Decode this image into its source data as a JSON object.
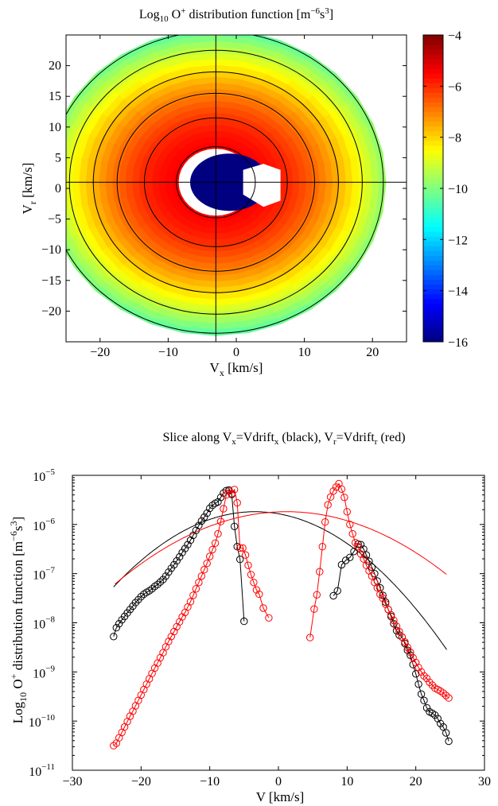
{
  "chart_data": [
    {
      "type": "heatmap",
      "title": {
        "pre": "Log",
        "sub": "10",
        "mid": " O",
        "sup1": "+",
        "post": " distribution function [m",
        "sup2": "−6",
        "post2": "s",
        "sup3": "3",
        "end": "]"
      },
      "xlabel": {
        "main": "V",
        "sub": "x",
        "rest": " [km/s]"
      },
      "ylabel": {
        "main": "V",
        "sub": "r",
        "rest": " [km/s]"
      },
      "xlim": [
        -25,
        25
      ],
      "ylim": [
        -25,
        25
      ],
      "xticks": [
        -20,
        -10,
        0,
        10,
        20
      ],
      "yticks": [
        -20,
        -15,
        -10,
        -5,
        0,
        5,
        10,
        15,
        20
      ],
      "xtick_labels": [
        "−20",
        "−10",
        "0",
        "10",
        "20"
      ],
      "ytick_labels": [
        "−20",
        "−15",
        "−10",
        "−5",
        "0",
        "5",
        "10",
        "15",
        "20"
      ],
      "colorbar": {
        "range": [
          -16,
          -4
        ],
        "ticks": [
          -4,
          -6,
          -8,
          -10,
          -12,
          -14,
          -16
        ],
        "tick_labels": [
          "−4",
          "−6",
          "−8",
          "−10",
          "−12",
          "−14",
          "−16"
        ],
        "colormap": "jet"
      },
      "field": {
        "center": [
          -3,
          1
        ],
        "peak_log10": -5.5,
        "edge_log10": -10.2,
        "outer_radius": 25,
        "masked_core_radius": 5.5,
        "masked_value_log10": -16,
        "angular_sectors": 32,
        "radial_rings": 20
      },
      "contours": {
        "circles_center": [
          -3,
          1
        ],
        "circle_radii": [
          5.8,
          10.5,
          14.5,
          18.0,
          21.5,
          24.6
        ],
        "axis_lines": {
          "vertical_x": -3,
          "horizontal_y": 1
        }
      }
    },
    {
      "type": "line",
      "title": {
        "pre": "Slice along V",
        "sub1": "x",
        "mid1": "=Vdrift",
        "sub2": "x",
        "mid2": " (black), V",
        "sub3": "r",
        "mid3": "=Vdrift",
        "sub4": "r",
        "end": " (red)"
      },
      "xlabel": "V [km/s]",
      "ylabel": {
        "pre": "Log",
        "sub": "10",
        "mid": " O",
        "sup1": "+",
        "post": " distribution function [m",
        "sup2": "−6",
        "post2": "s",
        "sup3": "3",
        "end": "]"
      },
      "xlim": [
        -30,
        30
      ],
      "ylim_log10": [
        -11,
        -5
      ],
      "yscale": "log",
      "xticks": [
        -30,
        -20,
        -10,
        0,
        10,
        20,
        30
      ],
      "xtick_labels": [
        "−30",
        "−20",
        "−10",
        "0",
        "10",
        "20",
        "30"
      ],
      "ytick_exponents": [
        -5,
        -6,
        -7,
        -8,
        -9,
        -10,
        -11
      ],
      "ytick_base": "10",
      "ytick_exponent_labels": [
        "−5",
        "−6",
        "−7",
        "−8",
        "−9",
        "−10",
        "−11"
      ],
      "series": [
        {
          "color": "#000000",
          "marker": "circle",
          "segments": [
            [
              [
                -24.0,
                -8.28
              ],
              [
                -23.6,
                -8.1
              ],
              [
                -23.2,
                -8.02
              ],
              [
                -22.8,
                -7.94
              ],
              [
                -22.4,
                -7.87
              ],
              [
                -22.0,
                -7.8
              ],
              [
                -21.6,
                -7.73
              ],
              [
                -21.2,
                -7.66
              ],
              [
                -20.8,
                -7.59
              ],
              [
                -20.4,
                -7.53
              ],
              [
                -20.0,
                -7.47
              ],
              [
                -19.6,
                -7.42
              ],
              [
                -19.2,
                -7.38
              ],
              [
                -18.8,
                -7.35
              ],
              [
                -18.4,
                -7.31
              ],
              [
                -18.0,
                -7.26
              ],
              [
                -17.6,
                -7.22
              ],
              [
                -17.2,
                -7.17
              ],
              [
                -16.8,
                -7.12
              ],
              [
                -16.4,
                -7.05
              ],
              [
                -16.0,
                -6.97
              ],
              [
                -15.6,
                -6.89
              ],
              [
                -15.2,
                -6.82
              ],
              [
                -14.8,
                -6.74
              ],
              [
                -14.4,
                -6.66
              ],
              [
                -14.0,
                -6.57
              ],
              [
                -13.6,
                -6.49
              ],
              [
                -13.2,
                -6.41
              ],
              [
                -12.8,
                -6.32
              ],
              [
                -12.4,
                -6.22
              ],
              [
                -12.0,
                -6.12
              ],
              [
                -11.6,
                -6.02
              ],
              [
                -11.2,
                -5.93
              ],
              [
                -10.8,
                -5.85
              ],
              [
                -10.4,
                -5.77
              ],
              [
                -10.0,
                -5.67
              ],
              [
                -9.6,
                -5.61
              ],
              [
                -9.2,
                -5.57
              ],
              [
                -8.8,
                -5.54
              ],
              [
                -8.4,
                -5.45
              ],
              [
                -8.0,
                -5.36
              ],
              [
                -7.6,
                -5.31
              ],
              [
                -7.2,
                -5.3
              ],
              [
                -6.8,
                -5.39
              ],
              [
                -6.4,
                -6.04
              ],
              [
                -6.0,
                -6.45
              ],
              [
                -5.6,
                -6.71
              ],
              [
                -5.0,
                -7.97
              ]
            ],
            [
              [
                8.0,
                -7.45
              ],
              [
                8.6,
                -7.35
              ],
              [
                9.2,
                -6.82
              ],
              [
                9.8,
                -6.73
              ],
              [
                10.4,
                -6.67
              ],
              [
                11.0,
                -6.55
              ],
              [
                11.6,
                -6.4
              ],
              [
                12.0,
                -6.41
              ],
              [
                12.4,
                -6.5
              ],
              [
                12.8,
                -6.62
              ],
              [
                13.2,
                -6.75
              ],
              [
                13.6,
                -6.87
              ],
              [
                14.0,
                -7.0
              ],
              [
                14.4,
                -7.15
              ],
              [
                14.8,
                -7.29
              ],
              [
                15.2,
                -7.44
              ],
              [
                15.6,
                -7.58
              ],
              [
                16.0,
                -7.73
              ],
              [
                16.4,
                -7.87
              ],
              [
                16.8,
                -8.02
              ],
              [
                17.2,
                -8.16
              ],
              [
                17.6,
                -8.25
              ],
              [
                18.0,
                -8.29
              ],
              [
                18.4,
                -8.42
              ],
              [
                18.8,
                -8.56
              ],
              [
                19.2,
                -8.66
              ],
              [
                19.6,
                -8.85
              ],
              [
                20.0,
                -9.04
              ],
              [
                20.4,
                -9.25
              ],
              [
                20.8,
                -9.45
              ],
              [
                21.2,
                -9.58
              ],
              [
                21.6,
                -9.73
              ],
              [
                22.0,
                -9.81
              ],
              [
                22.4,
                -9.84
              ],
              [
                22.8,
                -9.88
              ],
              [
                23.2,
                -9.95
              ],
              [
                23.6,
                -10.05
              ],
              [
                24.0,
                -10.12
              ],
              [
                24.4,
                -10.24
              ],
              [
                24.8,
                -10.41
              ]
            ]
          ],
          "fit": {
            "peak_x": -3.4,
            "peak_log10": -5.74,
            "sigma": 7.76,
            "x_range": [
              -24,
              24.6
            ]
          }
        },
        {
          "color": "#ff0000",
          "marker": "circle",
          "segments": [
            [
              [
                -24.0,
                -10.5
              ],
              [
                -23.6,
                -10.45
              ],
              [
                -23.2,
                -10.34
              ],
              [
                -22.8,
                -10.23
              ],
              [
                -22.4,
                -10.12
              ],
              [
                -22.0,
                -10.01
              ],
              [
                -21.6,
                -9.9
              ],
              [
                -21.2,
                -9.8
              ],
              [
                -20.8,
                -9.69
              ],
              [
                -20.4,
                -9.58
              ],
              [
                -20.0,
                -9.47
              ],
              [
                -19.6,
                -9.36
              ],
              [
                -19.2,
                -9.25
              ],
              [
                -18.8,
                -9.14
              ],
              [
                -18.4,
                -9.03
              ],
              [
                -18.0,
                -8.92
              ],
              [
                -17.6,
                -8.82
              ],
              [
                -17.2,
                -8.71
              ],
              [
                -16.8,
                -8.61
              ],
              [
                -16.4,
                -8.49
              ],
              [
                -16.0,
                -8.38
              ],
              [
                -15.6,
                -8.28
              ],
              [
                -15.2,
                -8.18
              ],
              [
                -14.8,
                -8.08
              ],
              [
                -14.4,
                -7.98
              ],
              [
                -14.0,
                -7.88
              ],
              [
                -13.6,
                -7.79
              ],
              [
                -13.2,
                -7.68
              ],
              [
                -12.8,
                -7.57
              ],
              [
                -12.4,
                -7.44
              ],
              [
                -12.0,
                -7.31
              ],
              [
                -11.6,
                -7.18
              ],
              [
                -11.2,
                -7.05
              ],
              [
                -10.8,
                -6.92
              ],
              [
                -10.4,
                -6.79
              ],
              [
                -10.0,
                -6.65
              ],
              [
                -9.6,
                -6.51
              ],
              [
                -9.2,
                -6.38
              ],
              [
                -8.8,
                -6.19
              ],
              [
                -8.4,
                -5.94
              ],
              [
                -8.0,
                -5.68
              ],
              [
                -7.6,
                -5.4
              ],
              [
                -7.2,
                -5.32
              ],
              [
                -6.8,
                -5.37
              ],
              [
                -6.4,
                -5.29
              ],
              [
                -6.0,
                -5.56
              ],
              [
                -5.6,
                -6.48
              ],
              [
                -5.2,
                -6.48
              ],
              [
                -4.8,
                -6.62
              ],
              [
                -4.4,
                -6.83
              ],
              [
                -4.0,
                -7.02
              ],
              [
                -3.6,
                -7.18
              ],
              [
                -3.2,
                -7.33
              ],
              [
                -2.8,
                -7.42
              ],
              [
                -2.2,
                -7.7
              ],
              [
                -1.4,
                -7.9
              ]
            ],
            [
              [
                4.6,
                -8.3
              ],
              [
                5.2,
                -7.72
              ],
              [
                5.6,
                -7.43
              ],
              [
                6.0,
                -6.96
              ],
              [
                6.4,
                -6.45
              ],
              [
                6.8,
                -5.95
              ],
              [
                7.2,
                -5.6
              ],
              [
                7.6,
                -5.44
              ],
              [
                8.0,
                -5.32
              ],
              [
                8.4,
                -5.24
              ],
              [
                8.8,
                -5.17
              ],
              [
                9.2,
                -5.28
              ],
              [
                9.6,
                -5.45
              ],
              [
                10.0,
                -5.74
              ],
              [
                10.4,
                -6.0
              ],
              [
                10.8,
                -6.19
              ],
              [
                11.2,
                -6.37
              ],
              [
                11.6,
                -6.45
              ],
              [
                12.0,
                -6.6
              ],
              [
                12.4,
                -6.7
              ],
              [
                12.8,
                -6.83
              ],
              [
                13.2,
                -6.94
              ],
              [
                13.6,
                -7.05
              ],
              [
                14.0,
                -7.18
              ],
              [
                14.4,
                -7.29
              ],
              [
                14.8,
                -7.42
              ],
              [
                15.2,
                -7.5
              ],
              [
                15.6,
                -7.62
              ],
              [
                16.0,
                -7.73
              ],
              [
                16.4,
                -7.84
              ],
              [
                16.8,
                -7.95
              ],
              [
                17.2,
                -8.07
              ],
              [
                17.6,
                -8.18
              ],
              [
                18.0,
                -8.29
              ],
              [
                18.4,
                -8.39
              ],
              [
                18.8,
                -8.5
              ],
              [
                19.2,
                -8.6
              ],
              [
                19.6,
                -8.71
              ],
              [
                20.0,
                -8.81
              ],
              [
                20.4,
                -8.91
              ],
              [
                20.8,
                -9.0
              ],
              [
                21.2,
                -9.08
              ],
              [
                21.6,
                -9.13
              ],
              [
                22.0,
                -9.21
              ],
              [
                22.4,
                -9.27
              ],
              [
                22.8,
                -9.33
              ],
              [
                23.2,
                -9.36
              ],
              [
                23.6,
                -9.39
              ],
              [
                24.0,
                -9.43
              ],
              [
                24.4,
                -9.48
              ],
              [
                24.8,
                -9.53
              ]
            ]
          ],
          "fit": {
            "peak_x": 1.2,
            "peak_log10": -5.74,
            "sigma": 9.6,
            "x_range": [
              -23.8,
              24.6
            ]
          }
        }
      ]
    }
  ]
}
